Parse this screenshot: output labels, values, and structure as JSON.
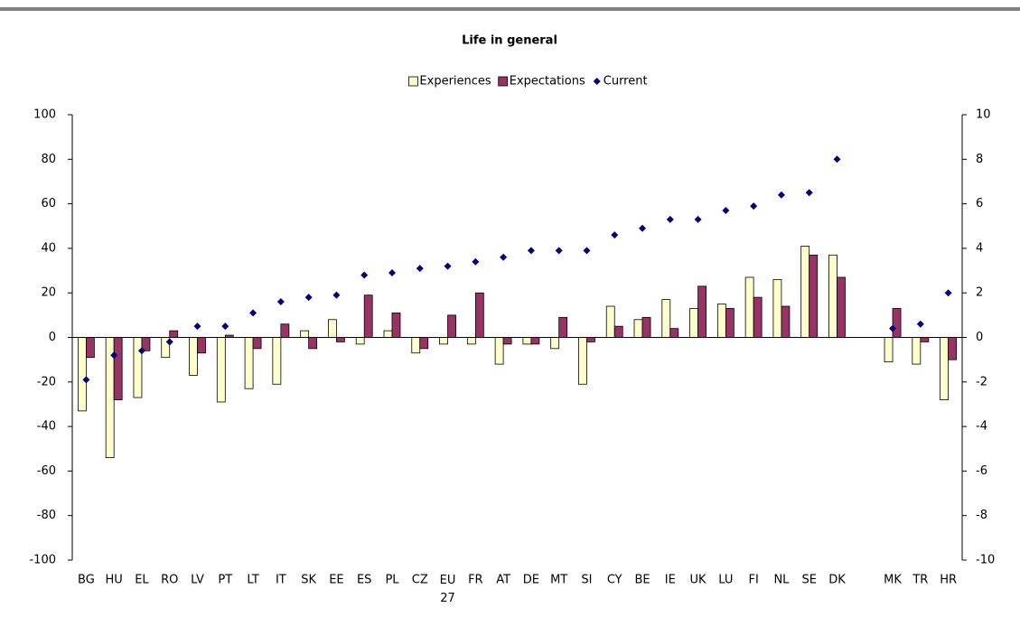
{
  "chart_data": {
    "type": "bar",
    "title": "Life in general",
    "categories": [
      "BG",
      "HU",
      "EL",
      "RO",
      "LV",
      "PT",
      "LT",
      "IT",
      "SK",
      "EE",
      "ES",
      "PL",
      "CZ",
      "EU 27",
      "FR",
      "AT",
      "DE",
      "MT",
      "SI",
      "CY",
      "BE",
      "IE",
      "UK",
      "LU",
      "FI",
      "NL",
      "SE",
      "DK",
      null,
      "MK",
      "TR",
      "HR"
    ],
    "series": [
      {
        "name": "Experiences",
        "type": "bar",
        "color": "#ffffcc",
        "values": [
          -33,
          -54,
          -27,
          -9,
          -17,
          -29,
          -23,
          -21,
          3,
          8,
          -3,
          3,
          -7,
          -3,
          -3,
          -12,
          -3,
          -5,
          -21,
          14,
          8,
          17,
          13,
          15,
          27,
          26,
          41,
          37,
          null,
          -11,
          -12,
          -28
        ]
      },
      {
        "name": "Expectations",
        "type": "bar",
        "color": "#993366",
        "values": [
          -9,
          -28,
          -6,
          3,
          -7,
          1,
          -5,
          6,
          -5,
          -2,
          19,
          11,
          -5,
          10,
          20,
          -3,
          -3,
          9,
          -2,
          5,
          9,
          4,
          23,
          13,
          18,
          14,
          37,
          27,
          null,
          13,
          -2,
          -10
        ]
      },
      {
        "name": "Current",
        "type": "scatter",
        "axis": "y2",
        "color": "#000080",
        "values": [
          -1.9,
          -0.8,
          -0.6,
          -0.2,
          0.5,
          0.5,
          1.1,
          1.6,
          1.8,
          1.9,
          2.8,
          2.9,
          3.1,
          3.2,
          3.4,
          3.6,
          3.9,
          3.9,
          3.9,
          4.6,
          4.9,
          5.3,
          5.3,
          5.7,
          5.9,
          6.4,
          6.5,
          8.0,
          null,
          0.4,
          0.6,
          2.0
        ]
      }
    ],
    "ylim": [
      -100,
      100
    ],
    "yticks": [
      -100,
      -80,
      -60,
      -40,
      -20,
      0,
      20,
      40,
      60,
      80,
      100
    ],
    "y2lim": [
      -10,
      10
    ],
    "y2ticks": [
      -10,
      -8,
      -6,
      -4,
      -2,
      0,
      2,
      4,
      6,
      8,
      10
    ],
    "legend": "top",
    "grid": false
  }
}
